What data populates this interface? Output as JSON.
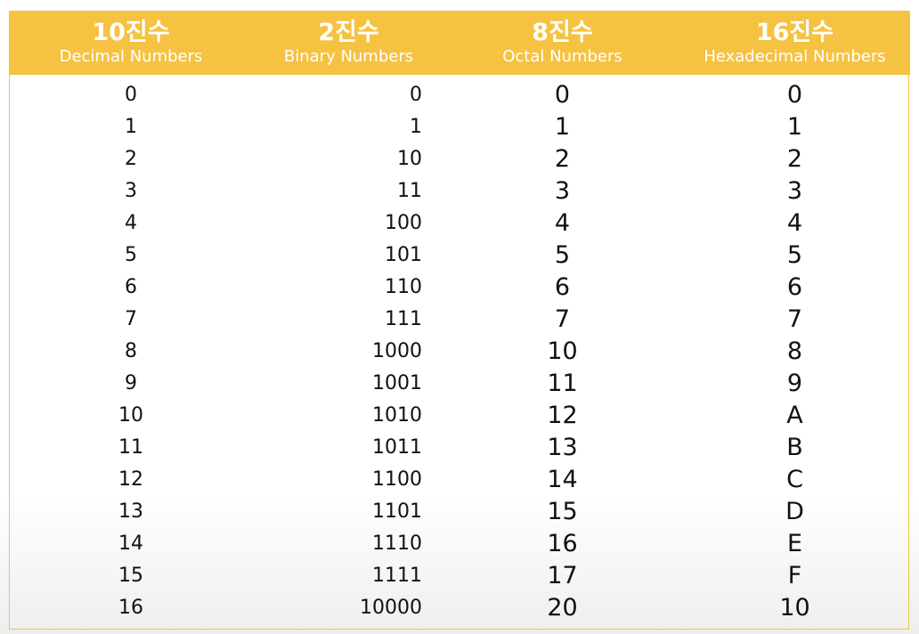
{
  "headers": [
    {
      "korean": "10진수",
      "english": "Decimal Numbers"
    },
    {
      "korean": "2진수",
      "english": "Binary Numbers"
    },
    {
      "korean": "8진수",
      "english": "Octal Numbers"
    },
    {
      "korean": "16진수",
      "english": "Hexadecimal Numbers"
    }
  ],
  "rows": [
    [
      "0",
      "0",
      "0",
      "0"
    ],
    [
      "1",
      "1",
      "1",
      "1"
    ],
    [
      "2",
      "10",
      "2",
      "2"
    ],
    [
      "3",
      "11",
      "3",
      "3"
    ],
    [
      "4",
      "100",
      "4",
      "4"
    ],
    [
      "5",
      "101",
      "5",
      "5"
    ],
    [
      "6",
      "110",
      "6",
      "6"
    ],
    [
      "7",
      "111",
      "7",
      "7"
    ],
    [
      "8",
      "1000",
      "10",
      "8"
    ],
    [
      "9",
      "1001",
      "11",
      "9"
    ],
    [
      "10",
      "1010",
      "12",
      "A"
    ],
    [
      "11",
      "1011",
      "13",
      "B"
    ],
    [
      "12",
      "1100",
      "14",
      "C"
    ],
    [
      "13",
      "1101",
      "15",
      "D"
    ],
    [
      "14",
      "1110",
      "16",
      "E"
    ],
    [
      "15",
      "1111",
      "17",
      "F"
    ],
    [
      "16",
      "10000",
      "20",
      "10"
    ]
  ],
  "colors": {
    "header_bg": "#f5c242",
    "header_text": "#ffffff",
    "cell_text": "#111111"
  }
}
